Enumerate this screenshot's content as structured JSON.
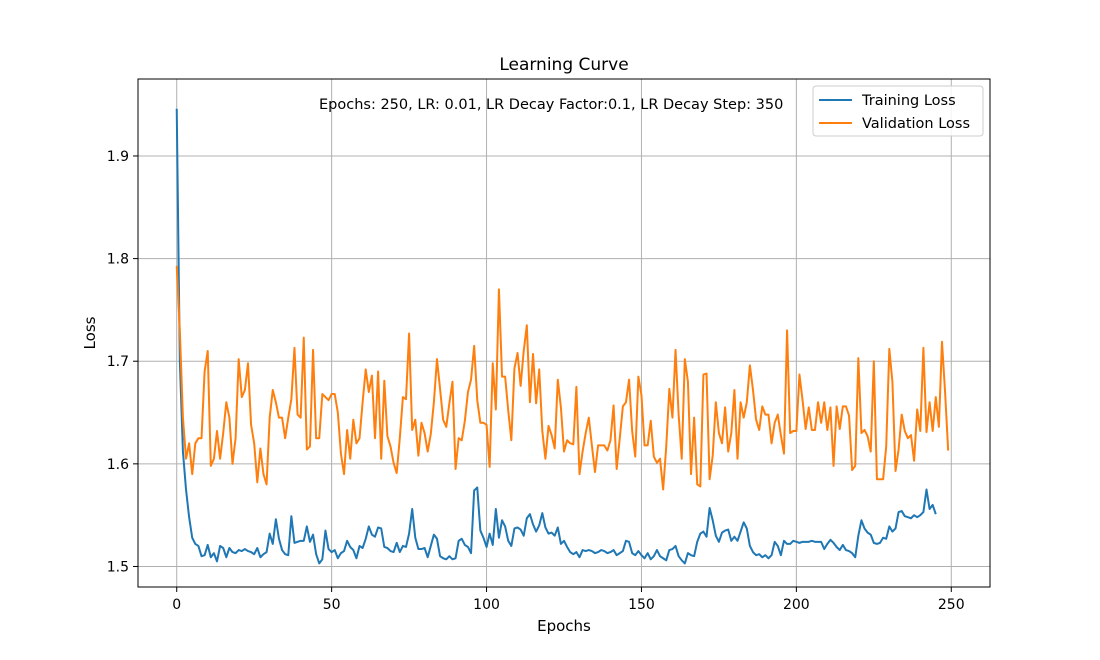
{
  "chart_data": {
    "type": "line",
    "title": "Learning Curve",
    "xlabel": "Epochs",
    "ylabel": "Loss",
    "xlim": [
      -12.5,
      262.5
    ],
    "ylim": [
      1.48,
      1.975
    ],
    "xticks": [
      0,
      50,
      100,
      150,
      200,
      250
    ],
    "yticks": [
      1.5,
      1.6,
      1.7,
      1.8,
      1.9
    ],
    "xtick_labels": [
      "0",
      "50",
      "100",
      "150",
      "200",
      "250"
    ],
    "ytick_labels": [
      "1.5",
      "1.6",
      "1.7",
      "1.8",
      "1.9"
    ],
    "grid": true,
    "legend_position": "top-right",
    "annotation": "Epochs: 250, LR: 0.01, LR Decay Factor:0.1, LR Decay Step: 350",
    "series": [
      {
        "name": "Training Loss",
        "color": "#1f77b4",
        "values": [
          1.946,
          1.7,
          1.612,
          1.575,
          1.548,
          1.528,
          1.522,
          1.52,
          1.51,
          1.511,
          1.521,
          1.509,
          1.513,
          1.505,
          1.52,
          1.518,
          1.509,
          1.518,
          1.514,
          1.513,
          1.516,
          1.515,
          1.517,
          1.515,
          1.514,
          1.512,
          1.518,
          1.509,
          1.512,
          1.514,
          1.532,
          1.522,
          1.546,
          1.527,
          1.516,
          1.512,
          1.511,
          1.549,
          1.523,
          1.524,
          1.525,
          1.525,
          1.539,
          1.524,
          1.531,
          1.512,
          1.503,
          1.507,
          1.535,
          1.517,
          1.514,
          1.516,
          1.508,
          1.513,
          1.515,
          1.525,
          1.519,
          1.516,
          1.508,
          1.52,
          1.518,
          1.527,
          1.539,
          1.531,
          1.529,
          1.538,
          1.537,
          1.519,
          1.518,
          1.515,
          1.514,
          1.523,
          1.514,
          1.52,
          1.519,
          1.532,
          1.556,
          1.528,
          1.517,
          1.517,
          1.518,
          1.509,
          1.52,
          1.531,
          1.527,
          1.51,
          1.508,
          1.507,
          1.51,
          1.507,
          1.508,
          1.525,
          1.527,
          1.521,
          1.519,
          1.513,
          1.574,
          1.577,
          1.535,
          1.528,
          1.519,
          1.532,
          1.521,
          1.556,
          1.528,
          1.545,
          1.539,
          1.525,
          1.52,
          1.537,
          1.538,
          1.536,
          1.53,
          1.547,
          1.551,
          1.541,
          1.534,
          1.54,
          1.552,
          1.538,
          1.532,
          1.533,
          1.53,
          1.538,
          1.522,
          1.525,
          1.519,
          1.514,
          1.512,
          1.514,
          1.509,
          1.516,
          1.515,
          1.516,
          1.515,
          1.513,
          1.514,
          1.516,
          1.515,
          1.513,
          1.514,
          1.516,
          1.511,
          1.513,
          1.515,
          1.525,
          1.524,
          1.513,
          1.511,
          1.515,
          1.511,
          1.508,
          1.513,
          1.507,
          1.51,
          1.516,
          1.51,
          1.508,
          1.506,
          1.516,
          1.517,
          1.52,
          1.51,
          1.506,
          1.503,
          1.513,
          1.511,
          1.51,
          1.524,
          1.532,
          1.534,
          1.529,
          1.557,
          1.545,
          1.53,
          1.524,
          1.533,
          1.535,
          1.536,
          1.525,
          1.529,
          1.525,
          1.534,
          1.543,
          1.537,
          1.52,
          1.514,
          1.511,
          1.512,
          1.509,
          1.511,
          1.508,
          1.511,
          1.524,
          1.52,
          1.511,
          1.525,
          1.522,
          1.522,
          1.525,
          1.524,
          1.523,
          1.524,
          1.524,
          1.524,
          1.525,
          1.524,
          1.524,
          1.524,
          1.517,
          1.522,
          1.526,
          1.523,
          1.519,
          1.516,
          1.521,
          1.516,
          1.515,
          1.513,
          1.509,
          1.53,
          1.545,
          1.537,
          1.533,
          1.531,
          1.523,
          1.522,
          1.523,
          1.528,
          1.527,
          1.539,
          1.534,
          1.537,
          1.553,
          1.554,
          1.549,
          1.548,
          1.547,
          1.55,
          1.548,
          1.55,
          1.553,
          1.575,
          1.556,
          1.56,
          1.551
        ]
      },
      {
        "name": "Validation Loss",
        "color": "#ff7f0e",
        "values": [
          1.793,
          1.73,
          1.645,
          1.605,
          1.62,
          1.59,
          1.62,
          1.625,
          1.625,
          1.69,
          1.71,
          1.598,
          1.605,
          1.632,
          1.605,
          1.63,
          1.66,
          1.645,
          1.6,
          1.625,
          1.702,
          1.665,
          1.672,
          1.698,
          1.638,
          1.62,
          1.582,
          1.615,
          1.59,
          1.58,
          1.645,
          1.672,
          1.66,
          1.645,
          1.645,
          1.625,
          1.645,
          1.663,
          1.713,
          1.648,
          1.645,
          1.723,
          1.614,
          1.617,
          1.711,
          1.625,
          1.625,
          1.668,
          1.665,
          1.662,
          1.668,
          1.668,
          1.65,
          1.61,
          1.59,
          1.633,
          1.605,
          1.643,
          1.62,
          1.625,
          1.66,
          1.692,
          1.67,
          1.686,
          1.625,
          1.69,
          1.605,
          1.681,
          1.627,
          1.617,
          1.601,
          1.591,
          1.625,
          1.665,
          1.663,
          1.727,
          1.633,
          1.643,
          1.608,
          1.64,
          1.63,
          1.612,
          1.629,
          1.66,
          1.702,
          1.673,
          1.643,
          1.636,
          1.659,
          1.68,
          1.595,
          1.625,
          1.623,
          1.642,
          1.67,
          1.682,
          1.715,
          1.662,
          1.64,
          1.64,
          1.638,
          1.597,
          1.698,
          1.653,
          1.77,
          1.685,
          1.685,
          1.652,
          1.623,
          1.693,
          1.708,
          1.676,
          1.71,
          1.735,
          1.66,
          1.707,
          1.659,
          1.692,
          1.632,
          1.605,
          1.637,
          1.628,
          1.615,
          1.682,
          1.655,
          1.612,
          1.623,
          1.62,
          1.619,
          1.675,
          1.59,
          1.612,
          1.63,
          1.645,
          1.618,
          1.592,
          1.618,
          1.618,
          1.618,
          1.613,
          1.623,
          1.657,
          1.595,
          1.625,
          1.656,
          1.66,
          1.682,
          1.632,
          1.607,
          1.685,
          1.667,
          1.618,
          1.618,
          1.642,
          1.607,
          1.601,
          1.605,
          1.575,
          1.617,
          1.673,
          1.645,
          1.711,
          1.648,
          1.605,
          1.702,
          1.68,
          1.59,
          1.645,
          1.58,
          1.578,
          1.687,
          1.688,
          1.585,
          1.608,
          1.66,
          1.63,
          1.62,
          1.655,
          1.612,
          1.63,
          1.672,
          1.605,
          1.66,
          1.645,
          1.66,
          1.696,
          1.672,
          1.643,
          1.633,
          1.656,
          1.648,
          1.648,
          1.62,
          1.64,
          1.648,
          1.628,
          1.61,
          1.73,
          1.63,
          1.632,
          1.632,
          1.687,
          1.662,
          1.634,
          1.655,
          1.633,
          1.633,
          1.66,
          1.64,
          1.66,
          1.633,
          1.655,
          1.598,
          1.656,
          1.634,
          1.656,
          1.656,
          1.647,
          1.594,
          1.598,
          1.703,
          1.63,
          1.633,
          1.627,
          1.612,
          1.7,
          1.585,
          1.585,
          1.585,
          1.617,
          1.712,
          1.68,
          1.593,
          1.614,
          1.648,
          1.632,
          1.625,
          1.628,
          1.603,
          1.653,
          1.632,
          1.713,
          1.631,
          1.66,
          1.632,
          1.665,
          1.636,
          1.719,
          1.67,
          1.613
        ]
      }
    ]
  }
}
